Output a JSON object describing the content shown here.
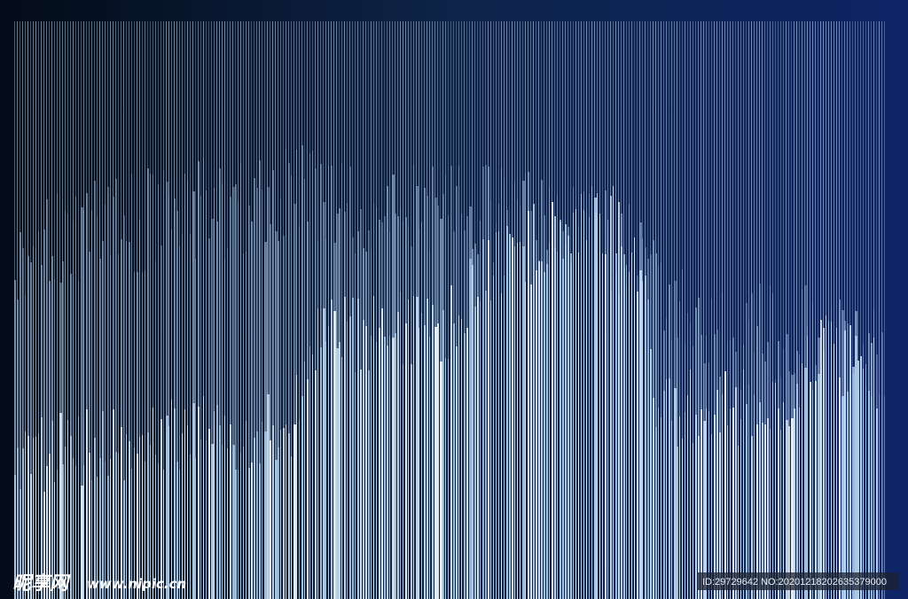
{
  "watermark": {
    "logo": "昵享网",
    "url": "www.nipic.cn"
  },
  "id_bar": "ID:29729642 NO:20201218202635379000"
}
